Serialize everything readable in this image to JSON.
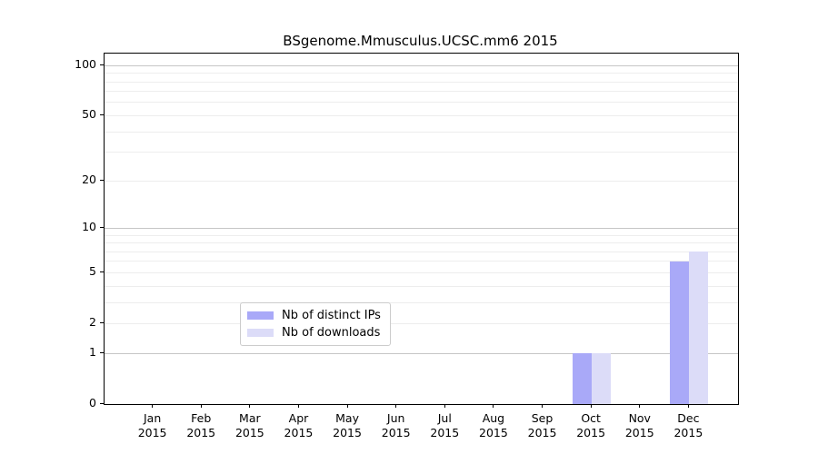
{
  "title": "BSgenome.Mmusculus.UCSC.mm6 2015",
  "colors": {
    "bar_distinct_ips": "#a9a9f8",
    "bar_downloads": "#dcdcf8",
    "grid_major": "#c6c6c6",
    "grid_minor": "#ededed",
    "axis": "#000000",
    "legend_border": "#cccccc",
    "background": "#ffffff"
  },
  "chart_data": {
    "type": "bar",
    "title": "BSgenome.Mmusculus.UCSC.mm6 2015",
    "xlabel": "",
    "ylabel": "",
    "y_scale": "log1p",
    "ylim": [
      0,
      118
    ],
    "yticks": [
      0,
      1,
      2,
      5,
      10,
      20,
      50,
      100
    ],
    "gridlines_major": [
      1,
      10,
      100
    ],
    "gridlines_minor": [
      2,
      3,
      4,
      5,
      6,
      7,
      8,
      9,
      20,
      30,
      40,
      50,
      60,
      70,
      80,
      90
    ],
    "grid": true,
    "categories": [
      "Jan",
      "Feb",
      "Mar",
      "Apr",
      "May",
      "Jun",
      "Jul",
      "Aug",
      "Sep",
      "Oct",
      "Nov",
      "Dec"
    ],
    "x_tick_year": "2015",
    "legend_position": "bottom-center",
    "series": [
      {
        "key": "distinct-ips",
        "name": "Nb of distinct IPs",
        "color": "#a9a9f8",
        "values": [
          0,
          0,
          0,
          0,
          0,
          0,
          0,
          0,
          0,
          1,
          0,
          6
        ]
      },
      {
        "key": "downloads",
        "name": "Nb of downloads",
        "color": "#dcdcf8",
        "values": [
          0,
          0,
          0,
          0,
          0,
          0,
          0,
          0,
          0,
          1,
          0,
          7
        ]
      }
    ]
  }
}
